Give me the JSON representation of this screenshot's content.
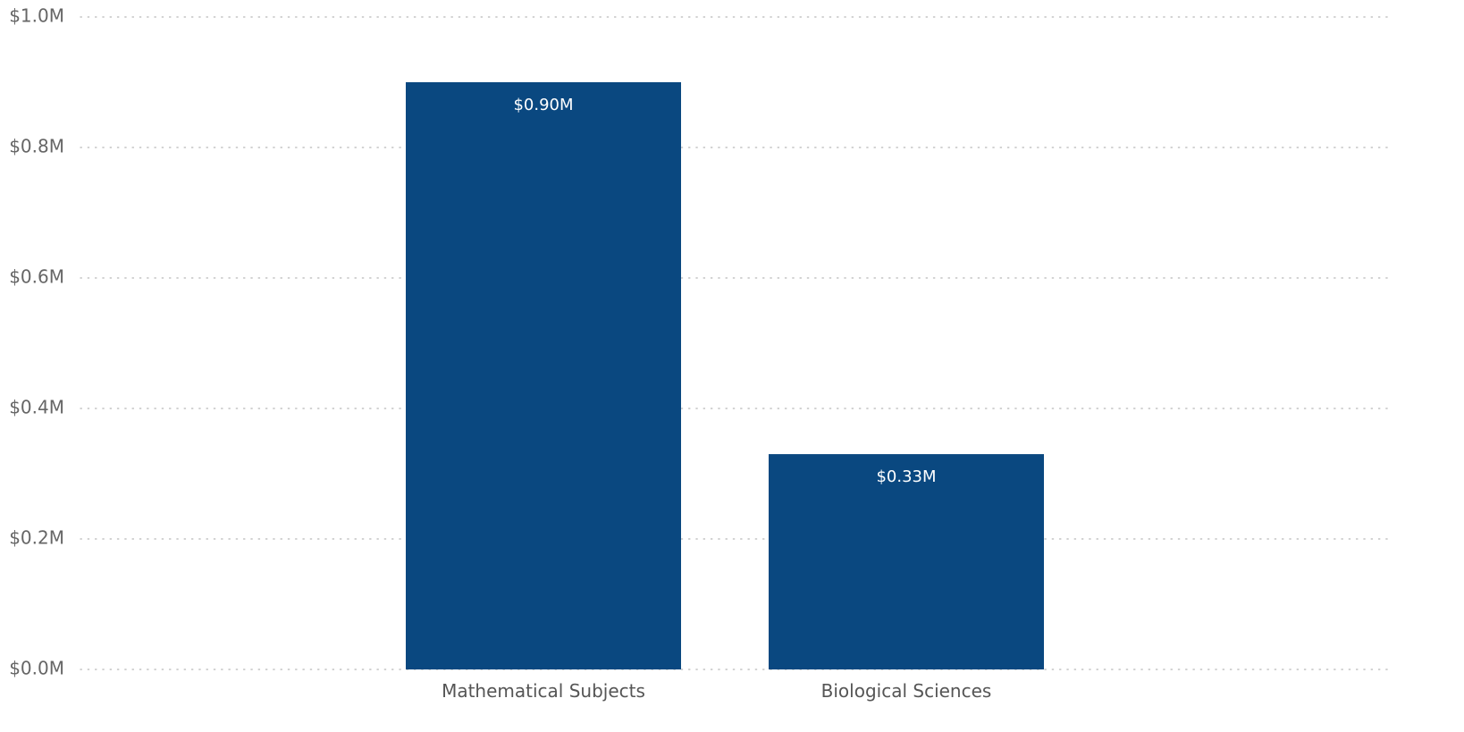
{
  "chart_data": {
    "type": "bar",
    "categories": [
      "Mathematical Subjects",
      "Biological Sciences"
    ],
    "values": [
      0.9,
      0.33
    ],
    "data_labels": [
      "$0.90M",
      "$0.33M"
    ],
    "ylim": [
      0,
      1.0
    ],
    "yticks": [
      0.0,
      0.2,
      0.4,
      0.6,
      0.8,
      1.0
    ],
    "ytick_labels": [
      "$0.0M",
      "$0.2M",
      "$0.4M",
      "$0.6M",
      "$0.8M",
      "$1.0M"
    ],
    "grid": "horizontal dotted",
    "bar_color": "#0a4880",
    "title": "",
    "xlabel": "",
    "ylabel": ""
  }
}
